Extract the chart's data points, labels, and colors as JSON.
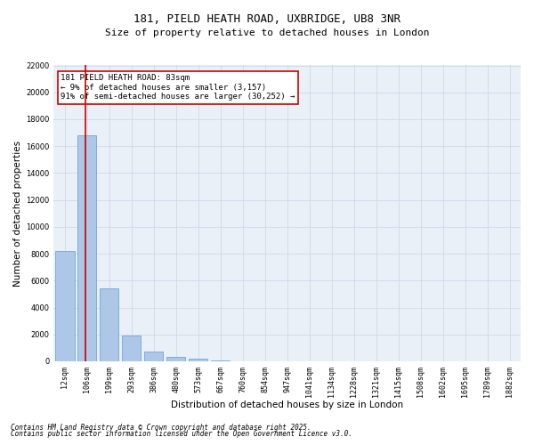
{
  "title_line1": "181, PIELD HEATH ROAD, UXBRIDGE, UB8 3NR",
  "title_line2": "Size of property relative to detached houses in London",
  "xlabel": "Distribution of detached houses by size in London",
  "ylabel": "Number of detached properties",
  "categories": [
    "12sqm",
    "106sqm",
    "199sqm",
    "293sqm",
    "386sqm",
    "480sqm",
    "573sqm",
    "667sqm",
    "760sqm",
    "854sqm",
    "947sqm",
    "1041sqm",
    "1134sqm",
    "1228sqm",
    "1321sqm",
    "1415sqm",
    "1508sqm",
    "1602sqm",
    "1695sqm",
    "1789sqm",
    "1882sqm"
  ],
  "values": [
    8200,
    16800,
    5400,
    1900,
    700,
    350,
    180,
    80,
    0,
    0,
    0,
    0,
    0,
    0,
    0,
    0,
    0,
    0,
    0,
    0,
    0
  ],
  "bar_color": "#aec6e8",
  "bar_edge_color": "#5a9fd4",
  "vline_color": "#cc0000",
  "vline_x": 0.93,
  "annotation_text": "181 PIELD HEATH ROAD: 83sqm\n← 9% of detached houses are smaller (3,157)\n91% of semi-detached houses are larger (30,252) →",
  "annotation_box_color": "#cc0000",
  "ylim": [
    0,
    22000
  ],
  "yticks": [
    0,
    2000,
    4000,
    6000,
    8000,
    10000,
    12000,
    14000,
    16000,
    18000,
    20000,
    22000
  ],
  "grid_color": "#d0d8e8",
  "background_color": "#eaf0f8",
  "footer_line1": "Contains HM Land Registry data © Crown copyright and database right 2025.",
  "footer_line2": "Contains public sector information licensed under the Open Government Licence v3.0.",
  "title_fontsize": 9,
  "subtitle_fontsize": 8,
  "axis_label_fontsize": 7.5,
  "tick_fontsize": 6,
  "annotation_fontsize": 6.5,
  "footer_fontsize": 5.5
}
